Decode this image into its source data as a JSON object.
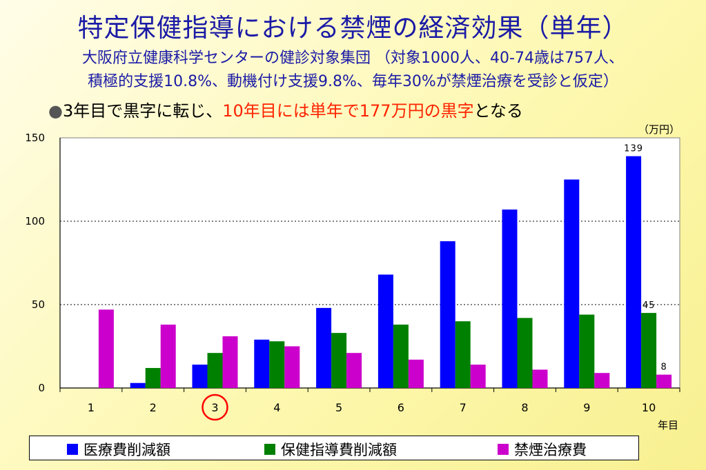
{
  "title": "特定保健指導における禁煙の経済効果（単年）",
  "subtitle_line1": "大阪府立健康科学センターの健診対象集団 （対象1000人、40-74歳は757人、",
  "subtitle_line2": "積極的支援10.8%、動機付け支援9.8%、毎年30%が禁煙治療を受診と仮定）",
  "bullet": {
    "marker": "●",
    "part1": "3年目で黒字に転じ、",
    "highlight": "10年目には単年で177万円の黒字",
    "part2": "となる"
  },
  "colors": {
    "series1": "#0000ff",
    "series2": "#008000",
    "series3": "#cc00cc",
    "highlight_circle": "#ff0000"
  },
  "chart_data": {
    "type": "bar",
    "unit_label": "（万円）",
    "xlabel": "年目",
    "ylabel": "",
    "ylim": [
      0,
      150
    ],
    "yticks": [
      0,
      50,
      100,
      150
    ],
    "grid": "dotted horizontal",
    "categories": [
      "1",
      "2",
      "3",
      "4",
      "5",
      "6",
      "7",
      "8",
      "9",
      "10"
    ],
    "highlighted_category": "3",
    "series": [
      {
        "name": "医療費削減額",
        "values": [
          0,
          3,
          14,
          29,
          48,
          68,
          88,
          107,
          125,
          139
        ]
      },
      {
        "name": "保健指導費削減額",
        "values": [
          0,
          12,
          21,
          28,
          33,
          38,
          40,
          42,
          44,
          45
        ]
      },
      {
        "name": "禁煙治療費",
        "values": [
          47,
          38,
          31,
          25,
          21,
          17,
          14,
          11,
          9,
          8
        ]
      }
    ],
    "data_labels": [
      {
        "series": 0,
        "index": 9,
        "text": "139"
      },
      {
        "series": 1,
        "index": 9,
        "text": "45"
      },
      {
        "series": 2,
        "index": 9,
        "text": "8"
      }
    ],
    "legend_position": "bottom"
  }
}
